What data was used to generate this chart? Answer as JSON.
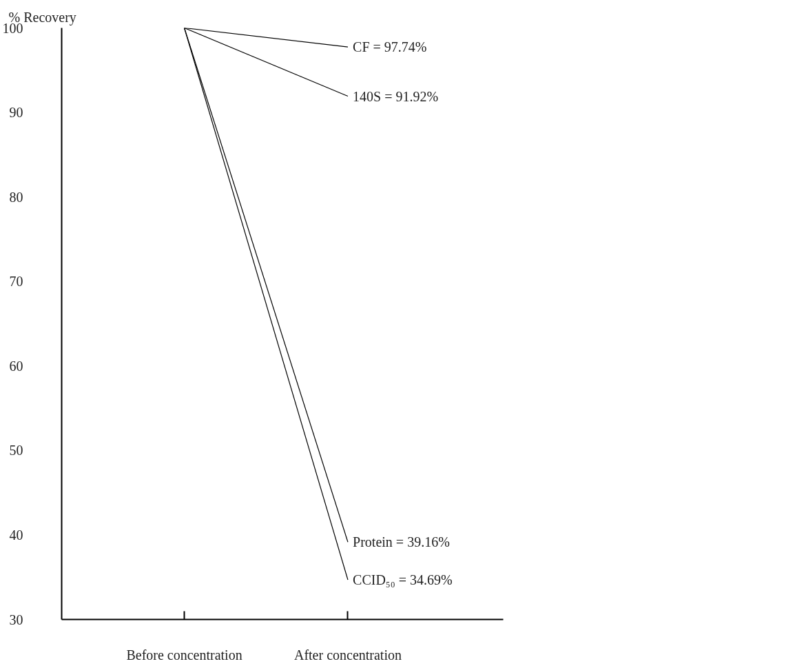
{
  "chart_data": {
    "type": "line",
    "ylabel": "% Recovery",
    "categories": [
      "Before concentration",
      "After concentration"
    ],
    "series": [
      {
        "name": "CF = 97.74%",
        "color": "#000000",
        "values": [
          100,
          97.74
        ]
      },
      {
        "name": "140S = 91.92%",
        "color": "#000000",
        "values": [
          100,
          91.92
        ]
      },
      {
        "name": "Protein = 39.16%",
        "color": "#000000",
        "values": [
          100,
          39.16
        ]
      },
      {
        "name": "CCID₅₀ = 34.69%",
        "color": "#000000",
        "values": [
          100,
          34.69
        ]
      }
    ],
    "ylim": [
      30,
      100
    ],
    "yticks": [
      30,
      40,
      50,
      60,
      70,
      80,
      90,
      100
    ],
    "grid": false,
    "legend": false,
    "marker": "none",
    "line_style": "solid"
  }
}
